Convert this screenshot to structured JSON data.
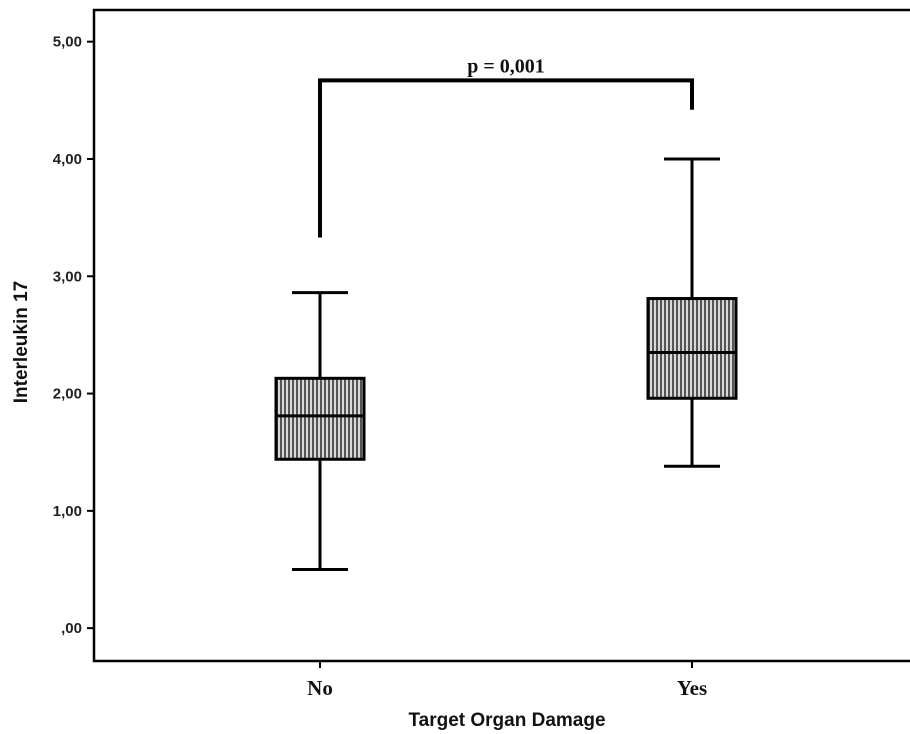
{
  "chart_data": {
    "type": "box",
    "title": "",
    "xlabel": "Target Organ Damage",
    "ylabel": "Interleukin 17",
    "ylim": [
      -0.28,
      5.27
    ],
    "yticks": [
      0,
      1,
      2,
      3,
      4,
      5
    ],
    "ytick_labels": [
      ",00",
      "1,00",
      "2,00",
      "3,00",
      "4,00",
      "5,00"
    ],
    "categories": [
      "No",
      "Yes"
    ],
    "boxes": [
      {
        "category": "No",
        "whisker_low": 0.5,
        "q1": 1.44,
        "median": 1.81,
        "q3": 2.13,
        "whisker_high": 2.86
      },
      {
        "category": "Yes",
        "whisker_low": 1.38,
        "q1": 1.96,
        "median": 2.35,
        "q3": 2.81,
        "whisker_high": 4.0
      }
    ],
    "box_fill": "#6b6b6b",
    "grid": false,
    "annotation": {
      "text": "p = 0,001",
      "between": [
        "No",
        "Yes"
      ],
      "bracket_y": 4.67,
      "left_end_y": 3.33,
      "right_end_y": 4.42
    }
  }
}
